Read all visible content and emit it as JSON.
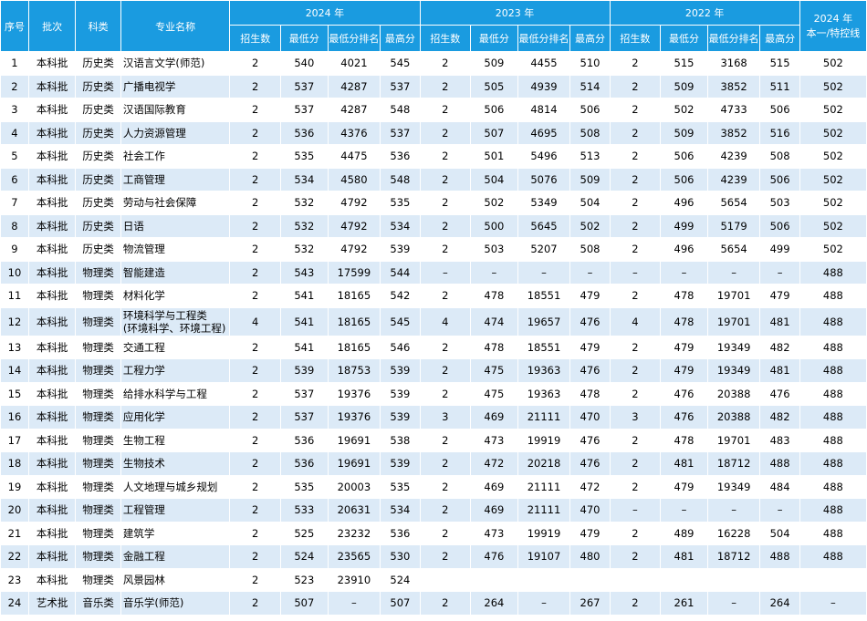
{
  "headers": {
    "no": "序号",
    "batch": "批次",
    "subject": "科类",
    "major": "专业名称",
    "y2024": "2024 年",
    "y2023": "2023 年",
    "y2022": "2022 年",
    "line": "2024 年\n本一/特控线",
    "sub": [
      "招生数",
      "最低分",
      "最低分排名",
      "最高分"
    ]
  },
  "rows": [
    [
      "1",
      "本科批",
      "历史类",
      "汉语言文学(师范)",
      "2",
      "540",
      "4021",
      "545",
      "2",
      "509",
      "4455",
      "510",
      "2",
      "515",
      "3168",
      "515",
      "502"
    ],
    [
      "2",
      "本科批",
      "历史类",
      "广播电视学",
      "2",
      "537",
      "4287",
      "537",
      "2",
      "505",
      "4939",
      "514",
      "2",
      "509",
      "3852",
      "511",
      "502"
    ],
    [
      "3",
      "本科批",
      "历史类",
      "汉语国际教育",
      "2",
      "537",
      "4287",
      "548",
      "2",
      "506",
      "4814",
      "506",
      "2",
      "502",
      "4733",
      "506",
      "502"
    ],
    [
      "4",
      "本科批",
      "历史类",
      "人力资源管理",
      "2",
      "536",
      "4376",
      "537",
      "2",
      "507",
      "4695",
      "508",
      "2",
      "509",
      "3852",
      "516",
      "502"
    ],
    [
      "5",
      "本科批",
      "历史类",
      "社会工作",
      "2",
      "535",
      "4475",
      "536",
      "2",
      "501",
      "5496",
      "513",
      "2",
      "506",
      "4239",
      "508",
      "502"
    ],
    [
      "6",
      "本科批",
      "历史类",
      "工商管理",
      "2",
      "534",
      "4580",
      "548",
      "2",
      "504",
      "5076",
      "509",
      "2",
      "506",
      "4239",
      "506",
      "502"
    ],
    [
      "7",
      "本科批",
      "历史类",
      "劳动与社会保障",
      "2",
      "532",
      "4792",
      "535",
      "2",
      "502",
      "5349",
      "504",
      "2",
      "496",
      "5654",
      "503",
      "502"
    ],
    [
      "8",
      "本科批",
      "历史类",
      "日语",
      "2",
      "532",
      "4792",
      "534",
      "2",
      "500",
      "5645",
      "502",
      "2",
      "499",
      "5179",
      "506",
      "502"
    ],
    [
      "9",
      "本科批",
      "历史类",
      "物流管理",
      "2",
      "532",
      "4792",
      "539",
      "2",
      "503",
      "5207",
      "508",
      "2",
      "496",
      "5654",
      "499",
      "502"
    ],
    [
      "10",
      "本科批",
      "物理类",
      "智能建造",
      "2",
      "543",
      "17599",
      "544",
      "–",
      "–",
      "–",
      "–",
      "–",
      "–",
      "–",
      "–",
      "488"
    ],
    [
      "11",
      "本科批",
      "物理类",
      "材料化学",
      "2",
      "541",
      "18165",
      "542",
      "2",
      "478",
      "18551",
      "479",
      "2",
      "478",
      "19701",
      "479",
      "488"
    ],
    [
      "12",
      "本科批",
      "物理类",
      "环境科学与工程类\n(环境科学、环境工程)",
      "4",
      "541",
      "18165",
      "545",
      "4",
      "474",
      "19657",
      "476",
      "4",
      "478",
      "19701",
      "481",
      "488"
    ],
    [
      "13",
      "本科批",
      "物理类",
      "交通工程",
      "2",
      "541",
      "18165",
      "546",
      "2",
      "478",
      "18551",
      "479",
      "2",
      "479",
      "19349",
      "482",
      "488"
    ],
    [
      "14",
      "本科批",
      "物理类",
      "工程力学",
      "2",
      "539",
      "18753",
      "539",
      "2",
      "475",
      "19363",
      "476",
      "2",
      "479",
      "19349",
      "481",
      "488"
    ],
    [
      "15",
      "本科批",
      "物理类",
      "给排水科学与工程",
      "2",
      "537",
      "19376",
      "539",
      "2",
      "475",
      "19363",
      "478",
      "2",
      "476",
      "20388",
      "476",
      "488"
    ],
    [
      "16",
      "本科批",
      "物理类",
      "应用化学",
      "2",
      "537",
      "19376",
      "539",
      "3",
      "469",
      "21111",
      "470",
      "3",
      "476",
      "20388",
      "482",
      "488"
    ],
    [
      "17",
      "本科批",
      "物理类",
      "生物工程",
      "2",
      "536",
      "19691",
      "538",
      "2",
      "473",
      "19919",
      "476",
      "2",
      "478",
      "19701",
      "483",
      "488"
    ],
    [
      "18",
      "本科批",
      "物理类",
      "生物技术",
      "2",
      "536",
      "19691",
      "539",
      "2",
      "472",
      "20218",
      "476",
      "2",
      "481",
      "18712",
      "488",
      "488"
    ],
    [
      "19",
      "本科批",
      "物理类",
      "人文地理与城乡规划",
      "2",
      "535",
      "20003",
      "535",
      "2",
      "469",
      "21111",
      "472",
      "2",
      "479",
      "19349",
      "484",
      "488"
    ],
    [
      "20",
      "本科批",
      "物理类",
      "工程管理",
      "2",
      "533",
      "20631",
      "534",
      "2",
      "469",
      "21111",
      "470",
      "–",
      "–",
      "–",
      "–",
      "488"
    ],
    [
      "21",
      "本科批",
      "物理类",
      "建筑学",
      "2",
      "525",
      "23232",
      "536",
      "2",
      "473",
      "19919",
      "479",
      "2",
      "489",
      "16228",
      "504",
      "488"
    ],
    [
      "22",
      "本科批",
      "物理类",
      "金融工程",
      "2",
      "524",
      "23565",
      "530",
      "2",
      "476",
      "19107",
      "480",
      "2",
      "481",
      "18712",
      "488",
      "488"
    ],
    [
      "23",
      "本科批",
      "物理类",
      "风景园林",
      "2",
      "523",
      "23910",
      "524",
      "",
      "",
      "",
      "",
      "",
      "",
      "",
      "",
      ""
    ],
    [
      "24",
      "艺术批",
      "音乐类",
      "音乐学(师范)",
      "2",
      "507",
      "–",
      "507",
      "2",
      "264",
      "–",
      "267",
      "2",
      "261",
      "–",
      "264",
      "–"
    ]
  ]
}
